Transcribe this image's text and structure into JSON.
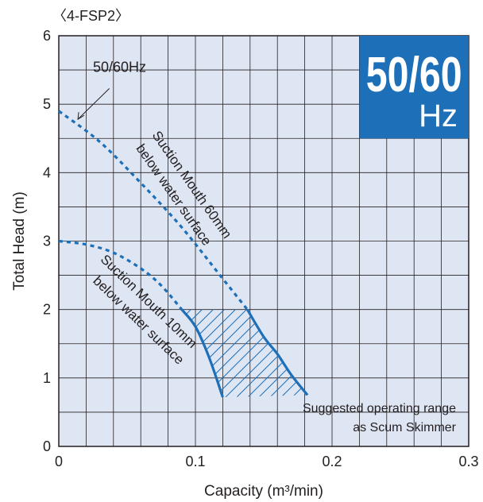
{
  "chart_data": {
    "type": "line",
    "model_label": "〈4-FSP2〉",
    "xlabel": "Capacity (m³/min)",
    "ylabel": "Total Head (m)",
    "xlim": [
      0,
      0.3
    ],
    "ylim": [
      0,
      6
    ],
    "x_ticks": [
      "0",
      "0.1",
      "0.2",
      "0.3"
    ],
    "y_ticks": [
      "0",
      "1",
      "2",
      "3",
      "4",
      "5",
      "6"
    ],
    "grid": true,
    "badge": {
      "line1": "50/60",
      "line2": "Hz",
      "color": "#1d6fb8"
    },
    "line_color": "#1d6fb8",
    "plot_bg": "#dfe6f3",
    "freq_label": "50/60Hz",
    "series": [
      {
        "name": "Suction Mouth 60mm below water surface",
        "label_lines": [
          "Suction Mouth 60mm",
          "below water surface"
        ],
        "dashed_x": [
          0,
          0.03,
          0.06,
          0.09,
          0.12,
          0.138
        ],
        "dashed_y": [
          4.9,
          4.45,
          3.85,
          3.2,
          2.45,
          2.0
        ],
        "solid_x": [
          0.138,
          0.15,
          0.16,
          0.17,
          0.182
        ],
        "solid_y": [
          2.0,
          1.6,
          1.35,
          1.05,
          0.75
        ]
      },
      {
        "name": "Suction Mouth 10mm below water surface",
        "label_lines": [
          "Suction Mouth 10mm",
          "below water surface"
        ],
        "dashed_x": [
          0,
          0.02,
          0.04,
          0.06,
          0.075,
          0.09
        ],
        "dashed_y": [
          3.0,
          2.95,
          2.83,
          2.6,
          2.35,
          2.0
        ],
        "solid_x": [
          0.09,
          0.1,
          0.11,
          0.12
        ],
        "solid_y": [
          2.0,
          1.75,
          1.3,
          0.72
        ]
      }
    ],
    "range_label": [
      "Suggested operating range",
      "as Scum Skimmer"
    ]
  }
}
